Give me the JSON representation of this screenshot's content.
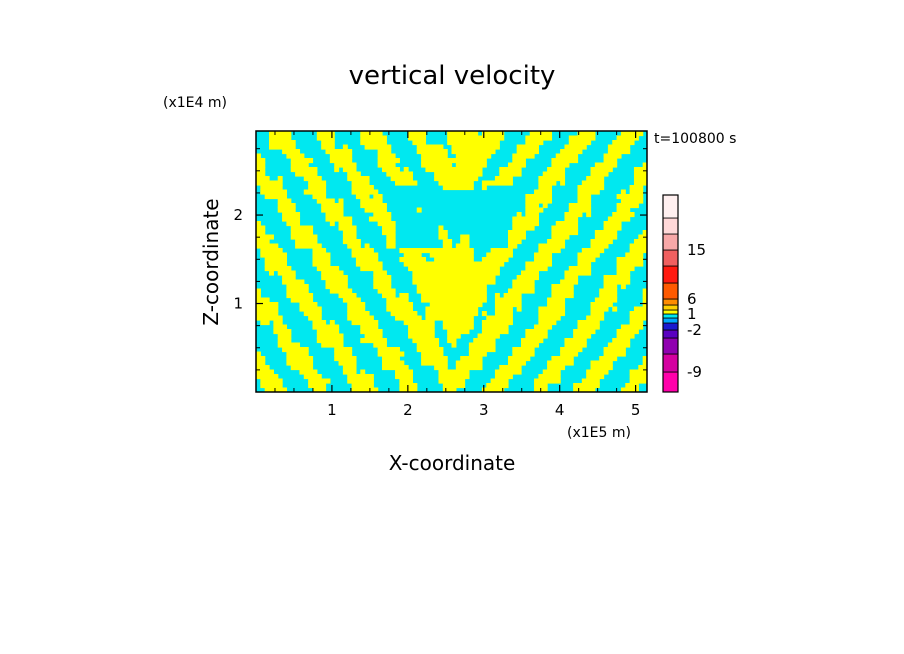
{
  "chart_data": {
    "type": "heatmap",
    "title": "vertical velocity",
    "xlabel": "X-coordinate",
    "ylabel": "Z-coordinate",
    "x_unit": "(x1E5 m)",
    "y_unit": "(x1E4 m)",
    "time_label": "t=100800 s",
    "xlim": [
      0,
      5.15
    ],
    "ylim": [
      0,
      2.95
    ],
    "x_ticks": [
      1,
      2,
      3,
      4,
      5
    ],
    "y_ticks": [
      1,
      2
    ],
    "x_tick_labels": [
      "1",
      "2",
      "3",
      "4",
      "5"
    ],
    "y_tick_labels": [
      "1",
      "2"
    ],
    "field_colors": {
      "positive": "#ffff00",
      "negative": "#00e8f0"
    },
    "colorbar": {
      "levels": [
        "-9",
        "-2",
        "1",
        "6",
        "15"
      ],
      "level_values": [
        -9,
        -2,
        1,
        6,
        15
      ],
      "colors": [
        "#ff00aa",
        "#d400a0",
        "#9000b0",
        "#5a00c0",
        "#1a1ad0",
        "#00a8ff",
        "#00e8f0",
        "#ffff00",
        "#ffd000",
        "#ff8c00",
        "#ff5a00",
        "#ff1a10",
        "#f06060",
        "#f8a8a8",
        "#ffd8d8",
        "#fff0f0"
      ]
    }
  }
}
